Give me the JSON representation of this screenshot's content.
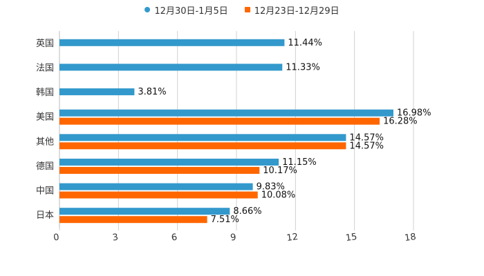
{
  "chart_data": {
    "type": "bar",
    "orientation": "horizontal",
    "categories": [
      "英国",
      "法国",
      "韩国",
      "美国",
      "其他",
      "德国",
      "中国",
      "日本"
    ],
    "series": [
      {
        "name": "12月30日-1月5日",
        "color": "#3399cc",
        "values": [
          11.44,
          11.33,
          3.81,
          16.98,
          14.57,
          11.15,
          9.83,
          8.66
        ],
        "labels": [
          "11.44%",
          "11.33%",
          "3.81%",
          "16.98%",
          "14.57%",
          "11.15%",
          "9.83%",
          "8.66%"
        ]
      },
      {
        "name": "12月23日-12月29日",
        "color": "#ff6600",
        "values": [
          null,
          null,
          null,
          16.28,
          14.57,
          10.17,
          10.08,
          7.51
        ],
        "labels": [
          "",
          "",
          "",
          "16.28%",
          "14.57%",
          "10.17%",
          "10.08%",
          "7.51%"
        ]
      }
    ],
    "xlim": [
      0,
      18
    ],
    "xticks": [
      0,
      3,
      6,
      9,
      12,
      15,
      18
    ],
    "legend_position": "top-center",
    "grid": "vertical"
  }
}
